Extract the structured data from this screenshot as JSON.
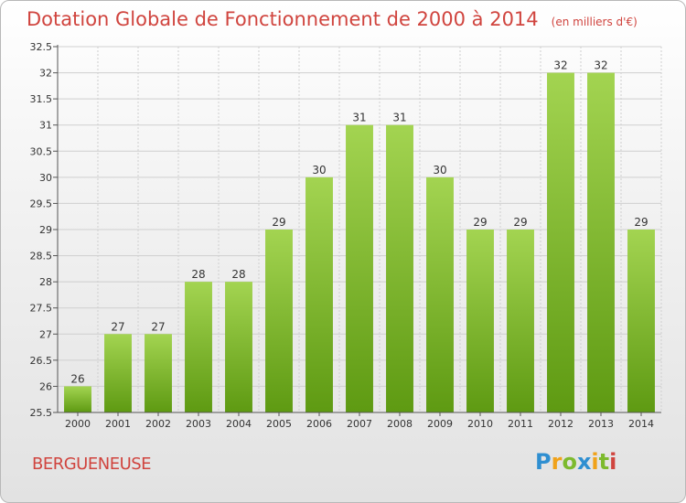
{
  "header": {
    "title": "Dotation Globale de Fonctionnement de 2000 à 2014",
    "subtitle": "(en milliers d'€)"
  },
  "footer": {
    "commune": "BERGUENEUSE",
    "logo": "Proxiti"
  },
  "chart_data": {
    "type": "bar",
    "title": "Dotation Globale de Fonctionnement de 2000 à 2014",
    "subtitle": "(en milliers d'€)",
    "categories": [
      "2000",
      "2001",
      "2002",
      "2003",
      "2004",
      "2005",
      "2006",
      "2007",
      "2008",
      "2009",
      "2010",
      "2011",
      "2012",
      "2013",
      "2014"
    ],
    "values": [
      26,
      27,
      27,
      28,
      28,
      29,
      30,
      31,
      31,
      30,
      29,
      29,
      32,
      32,
      29
    ],
    "value_labels": [
      "26",
      "27",
      "27",
      "28",
      "28",
      "29",
      "30",
      "31",
      "31",
      "30",
      "29",
      "29",
      "32",
      "32",
      "29"
    ],
    "ylim": [
      25.5,
      32.5
    ],
    "yticks": [
      "25.5",
      "26",
      "26.5",
      "27",
      "27.5",
      "28",
      "28.5",
      "29",
      "29.5",
      "30",
      "30.5",
      "31",
      "31.5",
      "32",
      "32.5"
    ],
    "xlabel": "",
    "ylabel": "",
    "grid": true,
    "legend": "none",
    "colors": {
      "bar_top": "#a3d451",
      "bar_bottom": "#5e9a12",
      "grid": "#cfcfcf",
      "title": "#d0443e"
    }
  }
}
